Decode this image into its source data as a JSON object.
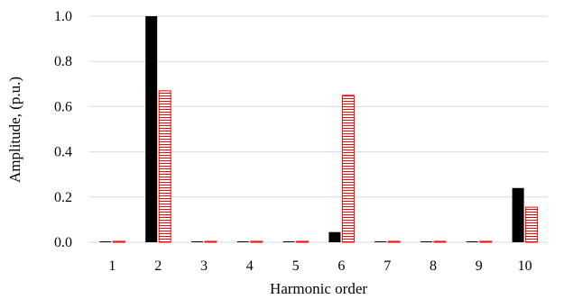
{
  "chart_data": {
    "type": "bar",
    "title": "",
    "xlabel": "Harmonic order",
    "ylabel": "Amplitude, (p.u.)",
    "categories": [
      "1",
      "2",
      "3",
      "4",
      "5",
      "6",
      "7",
      "8",
      "9",
      "10"
    ],
    "ylim": [
      0,
      1.0
    ],
    "yticks": [
      "0.0",
      "0.2",
      "0.4",
      "0.6",
      "0.8",
      "1.0"
    ],
    "grid": true,
    "legend": "none",
    "series": [
      {
        "values": [
          0.0,
          1.0,
          0.0,
          0.0,
          0.0,
          0.045,
          0.0,
          0.0,
          0.0,
          0.24
        ],
        "color": "#000000",
        "fill": "solid"
      },
      {
        "values": [
          0.0,
          0.67,
          0.0,
          0.0,
          0.0,
          0.65,
          0.0,
          0.0,
          0.0,
          0.155
        ],
        "color": "#ff0000",
        "fill": "horizontal-hatch"
      }
    ]
  }
}
